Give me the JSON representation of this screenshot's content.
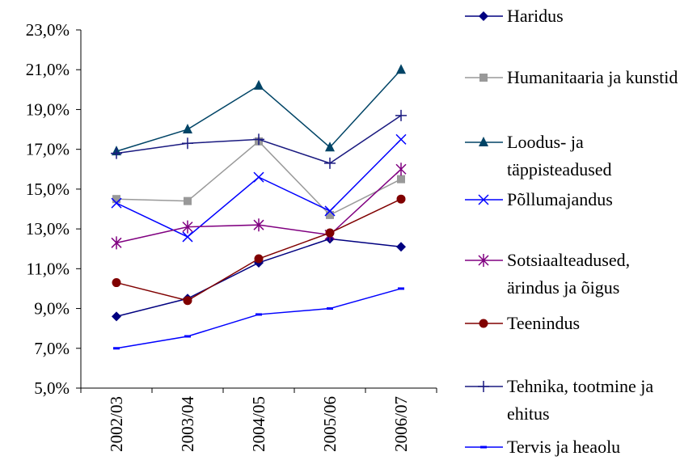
{
  "chart_data": {
    "type": "line",
    "categories": [
      "2002/03",
      "2003/04",
      "2004/05",
      "2005/06",
      "2006/07"
    ],
    "ylim": [
      5,
      23
    ],
    "yticks": [
      {
        "value": 5,
        "label": "5,0%"
      },
      {
        "value": 7,
        "label": "7,0%"
      },
      {
        "value": 9,
        "label": "9,0%"
      },
      {
        "value": 11,
        "label": "11,0%"
      },
      {
        "value": 13,
        "label": "13,0%"
      },
      {
        "value": 15,
        "label": "15,0%"
      },
      {
        "value": 17,
        "label": "17,0%"
      },
      {
        "value": 19,
        "label": "19,0%"
      },
      {
        "value": 21,
        "label": "21,0%"
      },
      {
        "value": 23,
        "label": "23,0%"
      }
    ],
    "legend": "right",
    "series": [
      {
        "name": "Haridus",
        "color": "#000080",
        "marker": "diamond",
        "values": [
          8.6,
          9.5,
          11.3,
          12.5,
          12.1
        ]
      },
      {
        "name": "Humanitaaria ja kunstid",
        "color": "#999999",
        "marker": "square",
        "values": [
          14.5,
          14.4,
          17.4,
          13.7,
          15.5
        ]
      },
      {
        "name": "Loodus- ja täppisteadused",
        "color": "#004466",
        "marker": "triangle",
        "values": [
          16.9,
          18.0,
          20.2,
          17.1,
          21.0
        ]
      },
      {
        "name": "Põllumajandus",
        "color": "#0000ff",
        "marker": "x",
        "values": [
          14.3,
          12.6,
          15.6,
          13.9,
          17.5
        ]
      },
      {
        "name": "Sotsiaalteadused, ärindus ja õigus",
        "color": "#800080",
        "marker": "star",
        "values": [
          12.3,
          13.1,
          13.2,
          12.7,
          16.0
        ]
      },
      {
        "name": "Teenindus",
        "color": "#800000",
        "marker": "circle",
        "values": [
          10.3,
          9.4,
          11.5,
          12.8,
          14.5
        ]
      },
      {
        "name": "Tehnika, tootmine ja ehitus",
        "color": "#1a1a80",
        "marker": "plus",
        "values": [
          16.8,
          17.3,
          17.5,
          16.3,
          18.7
        ]
      },
      {
        "name": "Tervis ja heaolu",
        "color": "#0000ff",
        "marker": "dash",
        "values": [
          7.0,
          7.6,
          8.7,
          9.0,
          10.0
        ]
      }
    ]
  }
}
